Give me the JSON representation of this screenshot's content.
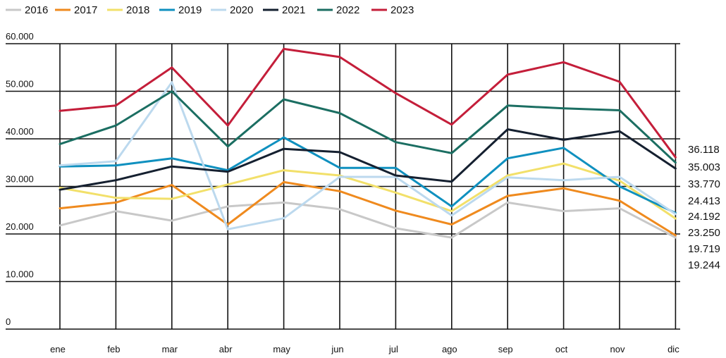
{
  "chart_data": {
    "type": "line",
    "categories": [
      "ene",
      "feb",
      "mar",
      "abr",
      "may",
      "jun",
      "jul",
      "ago",
      "sep",
      "oct",
      "nov",
      "dic"
    ],
    "ylim": [
      0,
      60000
    ],
    "y_ticks": [
      "0",
      "10.000",
      "20.000",
      "30.000",
      "40.000",
      "50.000",
      "60.000"
    ],
    "grid": true,
    "legend_position": "top-left",
    "series": [
      {
        "name": "2016",
        "color": "#c8c8c8",
        "values": [
          21800,
          24800,
          22800,
          25800,
          26600,
          25200,
          21200,
          19244,
          26600,
          24800,
          25400,
          19244
        ]
      },
      {
        "name": "2017",
        "color": "#ef8a1e",
        "values": [
          25400,
          26600,
          30300,
          22000,
          30900,
          29000,
          24900,
          22000,
          28000,
          29600,
          27000,
          19719
        ]
      },
      {
        "name": "2018",
        "color": "#f2e06a",
        "values": [
          29700,
          27600,
          27400,
          30400,
          33400,
          32300,
          28700,
          24800,
          32300,
          34800,
          31200,
          23250
        ]
      },
      {
        "name": "2019",
        "color": "#0f90bf",
        "values": [
          34200,
          34400,
          35900,
          33400,
          40300,
          33900,
          33900,
          25800,
          35900,
          38100,
          30000,
          24413
        ]
      },
      {
        "name": "2020",
        "color": "#bcd9ee",
        "values": [
          34400,
          35300,
          51900,
          21000,
          23300,
          32000,
          32000,
          23900,
          31900,
          31300,
          32000,
          24192
        ]
      },
      {
        "name": "2021",
        "color": "#152030",
        "values": [
          29300,
          31300,
          34200,
          33100,
          37900,
          37200,
          32300,
          31000,
          42000,
          39800,
          41600,
          33770
        ]
      },
      {
        "name": "2022",
        "color": "#1b6e62",
        "values": [
          38900,
          42800,
          50000,
          38400,
          48300,
          45400,
          39300,
          37000,
          47000,
          46400,
          46000,
          35003
        ]
      },
      {
        "name": "2023",
        "color": "#c41e3a",
        "values": [
          45900,
          47000,
          55000,
          42800,
          58900,
          57200,
          49600,
          43000,
          53500,
          56100,
          52000,
          36118
        ]
      }
    ],
    "end_labels": [
      "36.118",
      "35.003",
      "33.770",
      "24.413",
      "24.192",
      "23.250",
      "19.719",
      "19.244"
    ]
  }
}
